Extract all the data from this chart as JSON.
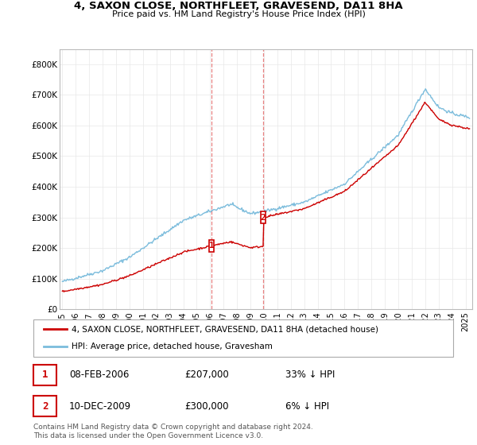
{
  "title": "4, SAXON CLOSE, NORTHFLEET, GRAVESEND, DA11 8HA",
  "subtitle": "Price paid vs. HM Land Registry's House Price Index (HPI)",
  "ylim": [
    0,
    850000
  ],
  "xlim_start": 1994.8,
  "xlim_end": 2025.5,
  "sale1_x": 2006.1,
  "sale1_y": 207000,
  "sale2_x": 2009.95,
  "sale2_y": 300000,
  "hpi_color": "#7bbcdc",
  "sale_color": "#cc0000",
  "vline_color": "#e88080",
  "marker_box_color": "#cc0000",
  "legend_label_sale": "4, SAXON CLOSE, NORTHFLEET, GRAVESEND, DA11 8HA (detached house)",
  "legend_label_hpi": "HPI: Average price, detached house, Gravesham",
  "sale1_date": "08-FEB-2006",
  "sale1_price": "£207,000",
  "sale1_hpi": "33% ↓ HPI",
  "sale2_date": "10-DEC-2009",
  "sale2_price": "£300,000",
  "sale2_hpi": "6% ↓ HPI",
  "footnote": "Contains HM Land Registry data © Crown copyright and database right 2024.\nThis data is licensed under the Open Government Licence v3.0.",
  "grid_color": "#e8e8e8"
}
